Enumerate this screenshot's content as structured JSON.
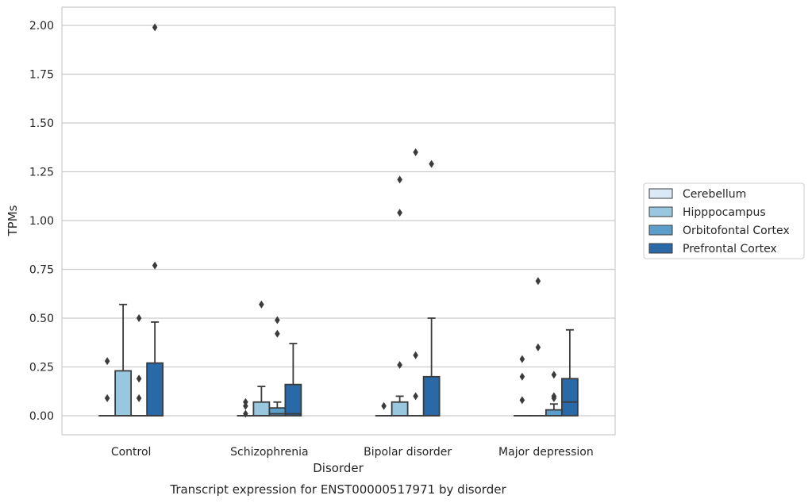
{
  "chart_data": {
    "type": "box",
    "title": "Transcript expression for ENST00000517971 by disorder",
    "xlabel": "Disorder",
    "ylabel": "TPMs",
    "ylim": [
      -0.1,
      2.1
    ],
    "yticks": [
      0.0,
      0.25,
      0.5,
      0.75,
      1.0,
      1.25,
      1.5,
      1.75,
      2.0
    ],
    "ytick_labels": [
      "0.00",
      "0.25",
      "0.50",
      "0.75",
      "1.00",
      "1.25",
      "1.50",
      "1.75",
      "2.00"
    ],
    "grid": "horizontal",
    "legend_position": "right",
    "categories": [
      "Control",
      "Schizophrenia",
      "Bipolar disorder",
      "Major depression"
    ],
    "series": [
      {
        "name": "Cerebellum",
        "color": "#dbe9f6",
        "boxes": [
          {
            "min": 0,
            "q1": 0,
            "median": 0,
            "q3": 0,
            "max": 0,
            "outliers": [
              0.09,
              0.28
            ]
          },
          {
            "min": 0,
            "q1": 0,
            "median": 0,
            "q3": 0,
            "max": 0,
            "outliers": [
              0.01,
              0.05,
              0.07
            ]
          },
          {
            "min": 0,
            "q1": 0,
            "median": 0,
            "q3": 0,
            "max": 0,
            "outliers": [
              0.05
            ]
          },
          {
            "min": 0,
            "q1": 0,
            "median": 0,
            "q3": 0,
            "max": 0,
            "outliers": [
              0.08,
              0.2,
              0.29
            ]
          }
        ]
      },
      {
        "name": "Hipppocampus",
        "color": "#9ac7e0",
        "boxes": [
          {
            "min": 0,
            "q1": 0,
            "median": 0,
            "q3": 0.23,
            "max": 0.57,
            "outliers": []
          },
          {
            "min": 0,
            "q1": 0,
            "median": 0,
            "q3": 0.07,
            "max": 0.15,
            "outliers": [
              0.57
            ]
          },
          {
            "min": 0,
            "q1": 0,
            "median": 0,
            "q3": 0.07,
            "max": 0.1,
            "outliers": [
              0.26,
              1.04,
              1.21
            ]
          },
          {
            "min": 0,
            "q1": 0,
            "median": 0,
            "q3": 0,
            "max": 0,
            "outliers": [
              0.35,
              0.69
            ]
          }
        ]
      },
      {
        "name": "Orbitofontal Cortex",
        "color": "#5b9ec9",
        "boxes": [
          {
            "min": 0,
            "q1": 0,
            "median": 0,
            "q3": 0,
            "max": 0,
            "outliers": [
              0.09,
              0.19,
              0.5
            ]
          },
          {
            "min": 0,
            "q1": 0,
            "median": 0.01,
            "q3": 0.04,
            "max": 0.07,
            "outliers": [
              0.42,
              0.49
            ]
          },
          {
            "min": 0,
            "q1": 0,
            "median": 0,
            "q3": 0,
            "max": 0,
            "outliers": [
              0.1,
              0.31,
              1.35
            ]
          },
          {
            "min": 0,
            "q1": 0,
            "median": 0,
            "q3": 0.03,
            "max": 0.06,
            "outliers": [
              0.09,
              0.1,
              0.21
            ]
          }
        ]
      },
      {
        "name": "Prefrontal Cortex",
        "color": "#2a69a8",
        "boxes": [
          {
            "min": 0,
            "q1": 0,
            "median": 0,
            "q3": 0.27,
            "max": 0.48,
            "outliers": [
              0.77,
              1.99
            ]
          },
          {
            "min": 0,
            "q1": 0,
            "median": 0.01,
            "q3": 0.16,
            "max": 0.37,
            "outliers": []
          },
          {
            "min": 0,
            "q1": 0,
            "median": 0,
            "q3": 0.2,
            "max": 0.5,
            "outliers": [
              1.29
            ]
          },
          {
            "min": 0,
            "q1": 0,
            "median": 0.07,
            "q3": 0.19,
            "max": 0.44,
            "outliers": []
          }
        ]
      }
    ]
  }
}
